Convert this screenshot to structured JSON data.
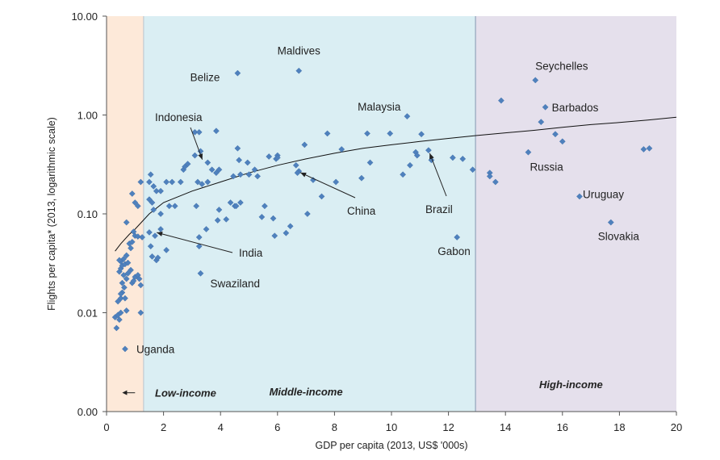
{
  "chart_data": {
    "type": "scatter",
    "title": "",
    "xlabel": "GDP per capita (2013, US$ '000s)",
    "ylabel": "Flights per capita* (2013, logarithmic scale)",
    "xlim": [
      0,
      20
    ],
    "ylim": [
      0.001,
      10
    ],
    "y_scale": "log",
    "grid": false,
    "x_ticks": [
      {
        "value": 0,
        "label": "0"
      },
      {
        "value": 2,
        "label": "2"
      },
      {
        "value": 4,
        "label": "4"
      },
      {
        "value": 6,
        "label": "6"
      },
      {
        "value": 8,
        "label": "8"
      },
      {
        "value": 10,
        "label": "10"
      },
      {
        "value": 12,
        "label": "12"
      },
      {
        "value": 14,
        "label": "14"
      },
      {
        "value": 16,
        "label": "16"
      },
      {
        "value": 18,
        "label": "18"
      },
      {
        "value": 20,
        "label": "20"
      }
    ],
    "y_ticks": [
      {
        "value": 0.001,
        "label": "0.00"
      },
      {
        "value": 0.01,
        "label": "0.01"
      },
      {
        "value": 0.1,
        "label": "0.10"
      },
      {
        "value": 1,
        "label": "1.00"
      },
      {
        "value": 10,
        "label": "10.00"
      }
    ],
    "regions": [
      {
        "label": "Low-income",
        "x_range": [
          0,
          1.3
        ],
        "color": "#fde9d9"
      },
      {
        "label": "Middle-income",
        "x_range": [
          1.3,
          12.95
        ],
        "color": "#daeef3"
      },
      {
        "label": "High-income",
        "x_range": [
          12.95,
          20
        ],
        "color": "#e5e0ec"
      }
    ],
    "marker_color": "#4f81bd",
    "points": [
      [
        0.3,
        0.009
      ],
      [
        0.35,
        0.007
      ],
      [
        0.45,
        0.0085
      ],
      [
        0.4,
        0.0095
      ],
      [
        0.5,
        0.01
      ],
      [
        0.7,
        0.0105
      ],
      [
        0.4,
        0.013
      ],
      [
        0.5,
        0.014
      ],
      [
        0.55,
        0.016
      ],
      [
        0.62,
        0.018
      ],
      [
        0.5,
        0.0155
      ],
      [
        0.65,
        0.014
      ],
      [
        0.55,
        0.02
      ],
      [
        0.7,
        0.022
      ],
      [
        0.6,
        0.024
      ],
      [
        0.45,
        0.026
      ],
      [
        0.5,
        0.028
      ],
      [
        0.75,
        0.025
      ],
      [
        0.55,
        0.03
      ],
      [
        0.65,
        0.031
      ],
      [
        0.75,
        0.032
      ],
      [
        0.5,
        0.033
      ],
      [
        0.6,
        0.035
      ],
      [
        0.45,
        0.034
      ],
      [
        0.7,
        0.038
      ],
      [
        0.85,
        0.027
      ],
      [
        0.9,
        0.02
      ],
      [
        1.0,
        0.023
      ],
      [
        1.1,
        0.024
      ],
      [
        1.15,
        0.022
      ],
      [
        1.2,
        0.019
      ],
      [
        0.95,
        0.021
      ],
      [
        1.2,
        0.01
      ],
      [
        0.65,
        0.0043
      ],
      [
        0.8,
        0.05
      ],
      [
        0.9,
        0.052
      ],
      [
        0.85,
        0.045
      ],
      [
        1.0,
        0.06
      ],
      [
        1.1,
        0.059
      ],
      [
        1.25,
        0.058
      ],
      [
        0.95,
        0.066
      ],
      [
        0.7,
        0.082
      ],
      [
        1.0,
        0.13
      ],
      [
        1.1,
        0.12
      ],
      [
        0.9,
        0.16
      ],
      [
        1.2,
        0.21
      ],
      [
        1.5,
        0.065
      ],
      [
        1.55,
        0.047
      ],
      [
        1.6,
        0.037
      ],
      [
        1.75,
        0.034
      ],
      [
        1.8,
        0.036
      ],
      [
        1.7,
        0.06
      ],
      [
        1.9,
        0.07
      ],
      [
        2.1,
        0.043
      ],
      [
        1.65,
        0.11
      ],
      [
        1.5,
        0.14
      ],
      [
        1.6,
        0.13
      ],
      [
        1.9,
        0.1
      ],
      [
        2.2,
        0.12
      ],
      [
        1.5,
        0.21
      ],
      [
        1.65,
        0.19
      ],
      [
        1.75,
        0.17
      ],
      [
        1.9,
        0.17
      ],
      [
        2.1,
        0.21
      ],
      [
        1.55,
        0.25
      ],
      [
        2.3,
        0.21
      ],
      [
        2.7,
        0.28
      ],
      [
        2.75,
        0.3
      ],
      [
        2.85,
        0.32
      ],
      [
        3.1,
        0.39
      ],
      [
        2.6,
        0.21
      ],
      [
        2.4,
        0.12
      ],
      [
        3.1,
        0.67
      ],
      [
        3.25,
        0.67
      ],
      [
        3.85,
        0.69
      ],
      [
        3.3,
        0.43
      ],
      [
        3.55,
        0.33
      ],
      [
        3.7,
        0.28
      ],
      [
        3.95,
        0.28
      ],
      [
        3.85,
        0.26
      ],
      [
        3.2,
        0.21
      ],
      [
        3.35,
        0.2
      ],
      [
        3.55,
        0.21
      ],
      [
        3.15,
        0.12
      ],
      [
        3.25,
        0.058
      ],
      [
        3.25,
        0.047
      ],
      [
        3.5,
        0.07
      ],
      [
        3.3,
        0.025
      ],
      [
        3.9,
        0.086
      ],
      [
        3.95,
        0.11
      ],
      [
        4.2,
        0.088
      ],
      [
        4.35,
        0.13
      ],
      [
        4.5,
        0.12
      ],
      [
        4.55,
        0.12
      ],
      [
        4.7,
        0.13
      ],
      [
        4.6,
        0.46
      ],
      [
        4.65,
        0.35
      ],
      [
        4.95,
        0.33
      ],
      [
        4.45,
        0.24
      ],
      [
        4.7,
        0.25
      ],
      [
        5.0,
        0.25
      ],
      [
        5.2,
        0.28
      ],
      [
        5.3,
        0.24
      ],
      [
        5.45,
        0.093
      ],
      [
        5.55,
        0.12
      ],
      [
        5.85,
        0.09
      ],
      [
        5.9,
        0.06
      ],
      [
        6.3,
        0.064
      ],
      [
        5.7,
        0.38
      ],
      [
        5.95,
        0.36
      ],
      [
        6.0,
        0.39
      ],
      [
        6.45,
        0.075
      ],
      [
        6.65,
        0.31
      ],
      [
        6.75,
        0.27
      ],
      [
        6.7,
        0.26
      ],
      [
        7.05,
        0.1
      ],
      [
        7.25,
        0.22
      ],
      [
        7.55,
        0.15
      ],
      [
        7.75,
        0.65
      ],
      [
        8.05,
        0.21
      ],
      [
        8.25,
        0.45
      ],
      [
        8.95,
        0.23
      ],
      [
        9.15,
        0.65
      ],
      [
        9.25,
        0.33
      ],
      [
        9.95,
        0.65
      ],
      [
        10.4,
        0.25
      ],
      [
        10.65,
        0.31
      ],
      [
        10.85,
        0.42
      ],
      [
        10.9,
        0.39
      ],
      [
        11.05,
        0.64
      ],
      [
        11.3,
        0.44
      ],
      [
        11.4,
        0.35
      ],
      [
        12.15,
        0.37
      ],
      [
        12.5,
        0.36
      ],
      [
        12.85,
        0.28
      ],
      [
        6.95,
        0.5
      ],
      [
        6.0,
        0.37
      ],
      [
        4.6,
        2.65
      ],
      [
        6.75,
        2.8
      ],
      [
        10.55,
        0.97
      ],
      [
        12.3,
        0.058
      ],
      [
        13.45,
        0.26
      ],
      [
        13.45,
        0.24
      ],
      [
        13.65,
        0.21
      ],
      [
        13.85,
        1.4
      ],
      [
        14.8,
        0.42
      ],
      [
        15.05,
        2.25
      ],
      [
        15.25,
        0.85
      ],
      [
        15.4,
        1.2
      ],
      [
        15.75,
        0.64
      ],
      [
        16.0,
        0.54
      ],
      [
        16.6,
        0.15
      ],
      [
        17.7,
        0.082
      ],
      [
        18.85,
        0.45
      ],
      [
        19.05,
        0.46
      ]
    ],
    "trend_line": {
      "type": "logarithmic",
      "x": [
        0.3,
        0.5,
        0.8,
        1.0,
        1.5,
        2,
        3,
        4,
        5,
        6,
        7,
        8,
        9,
        10,
        11,
        12,
        13,
        14,
        15,
        16,
        17,
        18,
        19,
        20
      ],
      "y": [
        0.042,
        0.05,
        0.062,
        0.07,
        0.1,
        0.13,
        0.17,
        0.21,
        0.26,
        0.31,
        0.36,
        0.41,
        0.46,
        0.5,
        0.54,
        0.58,
        0.62,
        0.66,
        0.7,
        0.75,
        0.8,
        0.84,
        0.89,
        0.95
      ]
    },
    "annotations": [
      {
        "text": "Maldives",
        "x": 6.75,
        "y": 2.8
      },
      {
        "text": "Belize",
        "x": 4.6,
        "y": 2.65
      },
      {
        "text": "Seychelles",
        "x": 15.05,
        "y": 2.25
      },
      {
        "text": "Barbados",
        "x": 15.4,
        "y": 1.2
      },
      {
        "text": "Malaysia",
        "x": 10.55,
        "y": 0.97
      },
      {
        "text": "Indonesia",
        "x": 3.4,
        "y": 0.33
      },
      {
        "text": "Russia",
        "x": 14.8,
        "y": 0.42
      },
      {
        "text": "China",
        "x": 6.7,
        "y": 0.27
      },
      {
        "text": "Brazil",
        "x": 11.3,
        "y": 0.44
      },
      {
        "text": "Uruguay",
        "x": 16.6,
        "y": 0.15
      },
      {
        "text": "Slovakia",
        "x": 17.7,
        "y": 0.082
      },
      {
        "text": "India",
        "x": 1.65,
        "y": 0.066
      },
      {
        "text": "Gabon",
        "x": 12.3,
        "y": 0.058
      },
      {
        "text": "Swaziland",
        "x": 3.3,
        "y": 0.025
      },
      {
        "text": "Uganda",
        "x": 0.65,
        "y": 0.0043
      }
    ]
  }
}
